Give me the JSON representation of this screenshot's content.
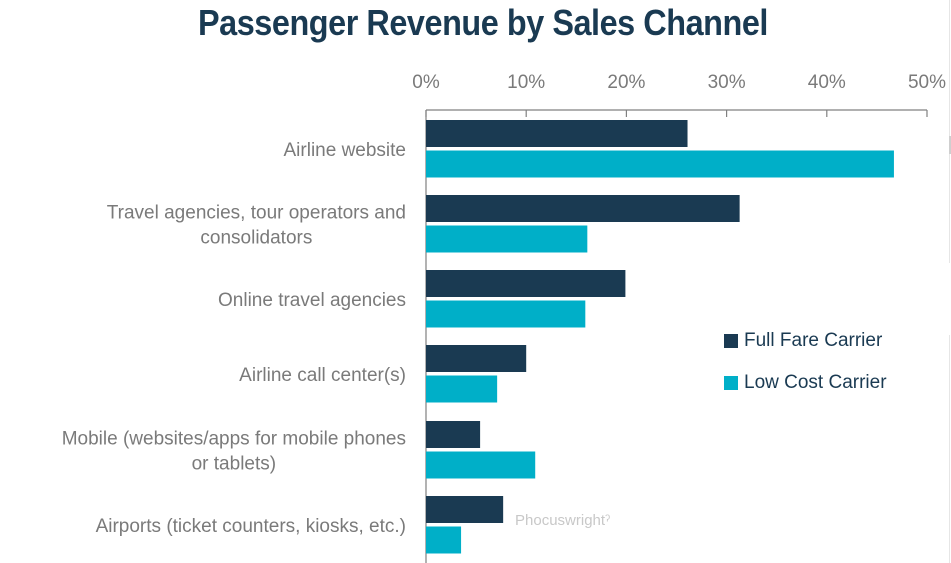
{
  "chart_data": {
    "type": "bar",
    "orientation": "horizontal",
    "title": "Passenger Revenue by Sales Channel",
    "xlabel": "",
    "ylabel": "",
    "xlim": [
      0,
      50
    ],
    "x_ticks": [
      "0%",
      "10%",
      "20%",
      "30%",
      "40%",
      "50%"
    ],
    "x_tick_values": [
      0,
      10,
      20,
      30,
      40,
      50
    ],
    "grid": false,
    "legend_position": "right",
    "categories": [
      [
        "Airline website"
      ],
      [
        "Travel agencies, tour operators and",
        "consolidators"
      ],
      [
        "Online travel agencies"
      ],
      [
        "Airline call center(s)"
      ],
      [
        "Mobile (websites/apps for mobile phones",
        "or tablets)"
      ],
      [
        "Airports (ticket counters, kiosks, etc.)"
      ]
    ],
    "series": [
      {
        "name": "Full Fare Carrier",
        "color": "#1a3a52",
        "values": [
          26.1,
          31.3,
          19.9,
          10.0,
          5.4,
          7.7
        ]
      },
      {
        "name": "Low Cost Carrier",
        "color": "#00afc8",
        "values": [
          46.7,
          16.1,
          15.9,
          7.1,
          10.9,
          3.5
        ]
      }
    ],
    "watermark": "Phocuswright"
  }
}
